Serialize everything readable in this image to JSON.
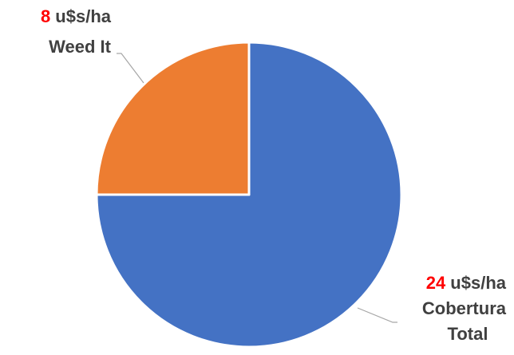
{
  "chart_data": {
    "type": "pie",
    "slices": [
      {
        "category": "Cobertura Total",
        "value": 24,
        "color": "#4472C4",
        "label_value": "24",
        "label_unit": " u$s/ha",
        "label_lines": [
          "Cobertura",
          "Total"
        ]
      },
      {
        "category": "Weed It",
        "value": 8,
        "color": "#ED7D31",
        "label_value": "8",
        "label_unit": " u$s/ha",
        "label_lines": [
          "Weed It"
        ]
      }
    ],
    "value_color": "#FF0000",
    "text_color": "#404040",
    "leader_color": "#A6A6A6",
    "slice_border_color": "#FFFFFF"
  }
}
